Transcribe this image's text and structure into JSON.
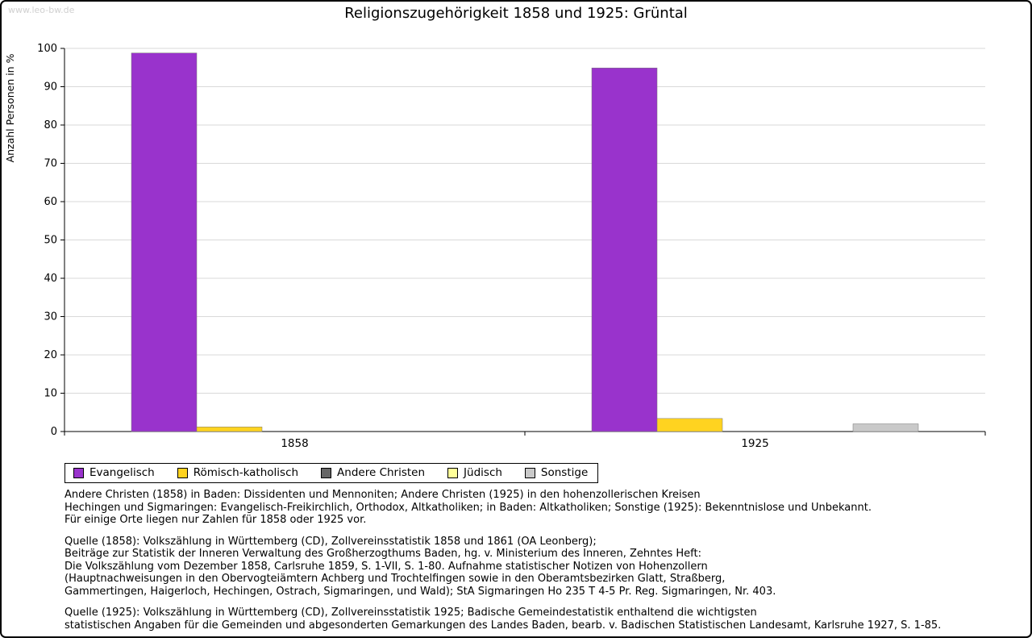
{
  "page": {
    "watermark": "www.leo-bw.de",
    "title": "Religionszugehörigkeit 1858 und 1925: Grüntal"
  },
  "chart_data": {
    "type": "bar",
    "title": "Religionszugehörigkeit 1858 und 1925: Grüntal",
    "categories": [
      "1858",
      "1925"
    ],
    "series": [
      {
        "name": "Evangelisch",
        "color": "#9933CC",
        "values": [
          98.8,
          94.9
        ]
      },
      {
        "name": "Römisch-katholisch",
        "color": "#FFD320",
        "values": [
          1.2,
          3.4
        ]
      },
      {
        "name": "Andere Christen",
        "color": "#666666",
        "values": [
          0,
          0
        ]
      },
      {
        "name": "Jüdisch",
        "color": "#FFFF99",
        "values": [
          0,
          0
        ]
      },
      {
        "name": "Sonstige",
        "color": "#C9C9C9",
        "values": [
          0,
          2
        ]
      }
    ],
    "xlabel": "",
    "ylabel": "Anzahl Personen in %",
    "ylim": [
      0,
      100
    ],
    "ytick_step": 10,
    "grid": true,
    "legend_position": "bottom"
  },
  "notes": {
    "paragraph1": "Andere Christen (1858) in Baden: Dissidenten und Mennoniten; Andere Christen (1925) in den hohenzollerischen Kreisen\nHechingen und Sigmaringen: Evangelisch-Freikirchlich, Orthodox, Altkatholiken; in Baden: Altkatholiken; Sonstige (1925): Bekenntnislose und Unbekannt.\nFür einige Orte liegen nur Zahlen für 1858 oder 1925 vor.",
    "paragraph2": "Quelle (1858): Volkszählung in Württemberg (CD), Zollvereinsstatistik 1858 und 1861 (OA Leonberg);\nBeiträge zur Statistik der Inneren Verwaltung des Großherzogthums Baden, hg. v. Ministerium des Inneren, Zehntes Heft:\nDie Volkszählung vom Dezember 1858, Carlsruhe 1859, S. 1-VII, S. 1-80. Aufnahme statistischer Notizen von Hohenzollern\n(Hauptnachweisungen in den Obervogteiämtern Achberg und Trochtelfingen sowie in den Oberamtsbezirken Glatt, Straßberg,\nGammertingen, Haigerloch, Hechingen, Ostrach, Sigmaringen, und Wald); StA Sigmaringen Ho 235 T 4-5 Pr. Reg. Sigmaringen, Nr. 403.",
    "paragraph3": "Quelle (1925): Volkszählung in Württemberg (CD), Zollvereinsstatistik 1925; Badische Gemeindestatistik enthaltend die wichtigsten\nstatistischen Angaben für die Gemeinden und abgesonderten Gemarkungen des Landes Baden, bearb. v. Badischen Statistischen Landesamt, Karlsruhe 1927, S. 1-85."
  }
}
